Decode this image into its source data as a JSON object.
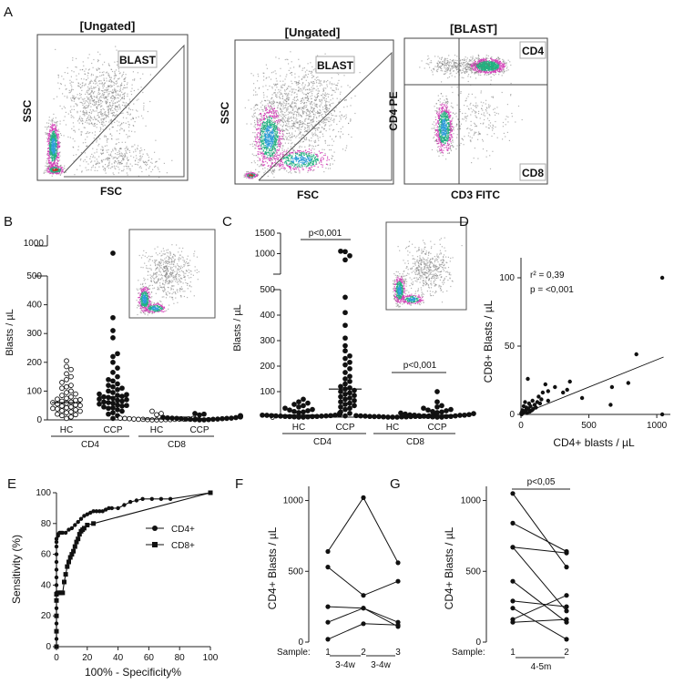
{
  "panel_labels": {
    "A": "A",
    "B": "B",
    "C": "C",
    "D": "D",
    "E": "E",
    "F": "F",
    "G": "G"
  },
  "panel_a": {
    "plots": [
      {
        "title": "[Ungated]",
        "gate_label": "BLAST",
        "x_label": "FSC",
        "y_label": "SSC"
      },
      {
        "title": "[Ungated]",
        "gate_label": "BLAST",
        "x_label": "FSC",
        "y_label": "SSC"
      },
      {
        "title": "[BLAST]",
        "x_label": "CD3 FITC",
        "y_label": "CD4 PE",
        "quadrant_top": "CD4",
        "quadrant_bottom": "CD8"
      }
    ],
    "density_colors": [
      "#2e9cd8",
      "#22b07f",
      "#d23fb6",
      "#c0302a",
      "#777777"
    ]
  },
  "chart_data": [
    {
      "panel": "B",
      "type": "scatter",
      "ylabel": "Blasts / µL",
      "y_ticks_lower": [
        "0",
        "100",
        "200",
        "300",
        "400",
        "500"
      ],
      "y_tick_upper": "1000",
      "ylim_lower": [
        0,
        500
      ],
      "categories": [
        "HC",
        "CCP",
        "HC",
        "CCP"
      ],
      "groups": [
        "CD4",
        "CD8"
      ],
      "series": [
        {
          "category": "HC",
          "group": "CD4",
          "marker": "open-circle",
          "median": 60,
          "values": [
            5,
            10,
            15,
            18,
            20,
            25,
            28,
            30,
            32,
            35,
            38,
            40,
            42,
            45,
            48,
            50,
            52,
            55,
            58,
            60,
            62,
            65,
            68,
            70,
            72,
            75,
            80,
            85,
            90,
            95,
            100,
            110,
            115,
            120,
            130,
            140,
            150,
            160,
            175,
            185,
            205
          ]
        },
        {
          "category": "CCP",
          "group": "CD4",
          "marker": "filled-circle",
          "median": 80,
          "values": [
            5,
            15,
            20,
            25,
            30,
            35,
            40,
            42,
            45,
            48,
            50,
            52,
            55,
            58,
            60,
            62,
            65,
            68,
            70,
            72,
            75,
            78,
            80,
            82,
            85,
            88,
            90,
            95,
            100,
            105,
            110,
            115,
            120,
            125,
            135,
            140,
            150,
            165,
            180,
            200,
            220,
            230,
            285,
            310,
            355,
            940
          ]
        },
        {
          "category": "HC",
          "group": "CD8",
          "marker": "open-circle",
          "median": 3,
          "values": [
            0,
            0,
            0,
            1,
            1,
            1,
            2,
            2,
            2,
            3,
            3,
            3,
            4,
            4,
            5,
            5,
            6,
            7,
            8,
            9,
            10,
            12,
            15,
            18,
            22,
            30
          ]
        },
        {
          "category": "CCP",
          "group": "CD8",
          "marker": "filled-circle",
          "median": 5,
          "values": [
            0,
            0,
            1,
            1,
            2,
            2,
            3,
            3,
            4,
            4,
            5,
            5,
            6,
            6,
            7,
            8,
            9,
            10,
            11,
            12,
            13,
            14,
            15,
            17,
            20,
            22
          ]
        }
      ]
    },
    {
      "panel": "C",
      "type": "scatter",
      "ylabel": "Blasts / µL",
      "y_ticks_lower": [
        "0",
        "100",
        "200",
        "300",
        "400",
        "500"
      ],
      "y_ticks_upper": [
        "1000",
        "1500"
      ],
      "ylim_lower": [
        0,
        500
      ],
      "categories": [
        "HC",
        "CCP",
        "HC",
        "CCP"
      ],
      "groups": [
        "CD4",
        "CD8"
      ],
      "annotations": [
        {
          "text": "p<0,001",
          "between": [
            0,
            1
          ]
        },
        {
          "text": "p<0,001",
          "between": [
            2,
            3
          ]
        }
      ],
      "series": [
        {
          "category": "HC",
          "group": "CD4",
          "marker": "filled-circle",
          "median": 8,
          "values": [
            0,
            0,
            1,
            1,
            2,
            2,
            3,
            3,
            4,
            4,
            5,
            5,
            6,
            6,
            7,
            8,
            8,
            9,
            10,
            12,
            14,
            16,
            18,
            20,
            22,
            25,
            28,
            30,
            35,
            40,
            45,
            50,
            55,
            60,
            70
          ]
        },
        {
          "category": "CCP",
          "group": "CD4",
          "marker": "filled-circle",
          "median": 110,
          "values": [
            5,
            15,
            20,
            30,
            35,
            40,
            45,
            50,
            55,
            60,
            65,
            70,
            75,
            80,
            85,
            90,
            95,
            100,
            105,
            110,
            115,
            120,
            130,
            140,
            150,
            160,
            175,
            190,
            205,
            215,
            230,
            240,
            260,
            280,
            310,
            360,
            410,
            470,
            850,
            950,
            1050,
            1060
          ]
        },
        {
          "category": "HC",
          "group": "CD8",
          "marker": "filled-circle",
          "median": 3,
          "values": [
            0,
            0,
            0,
            1,
            1,
            1,
            2,
            2,
            2,
            3,
            3,
            3,
            4,
            4,
            5,
            5,
            6,
            7,
            8,
            9,
            10
          ]
        },
        {
          "category": "CCP",
          "group": "CD8",
          "marker": "filled-circle",
          "median": 8,
          "values": [
            0,
            0,
            1,
            2,
            3,
            3,
            4,
            5,
            6,
            7,
            8,
            8,
            9,
            10,
            12,
            14,
            16,
            18,
            20,
            22,
            25,
            28,
            30,
            35,
            40,
            45,
            60,
            100
          ]
        }
      ]
    },
    {
      "panel": "D",
      "type": "scatter",
      "xlabel": "CD4+ blasts / µL",
      "ylabel": "CD8+ Blasts / µL",
      "xlim": [
        0,
        1100
      ],
      "ylim": [
        0,
        110
      ],
      "x_ticks": [
        "0",
        "500",
        "1000"
      ],
      "y_ticks": [
        "0",
        "50",
        "100"
      ],
      "stats": [
        "r² = 0,39",
        "p = <0,001"
      ],
      "regression": {
        "x": [
          0,
          1050
        ],
        "y": [
          0,
          42
        ]
      },
      "points": [
        [
          1040,
          100
        ],
        [
          850,
          44
        ],
        [
          790,
          23
        ],
        [
          670,
          20
        ],
        [
          660,
          7
        ],
        [
          450,
          12
        ],
        [
          360,
          24
        ],
        [
          340,
          18
        ],
        [
          310,
          16
        ],
        [
          250,
          20
        ],
        [
          200,
          17
        ],
        [
          200,
          10
        ],
        [
          180,
          22
        ],
        [
          160,
          16
        ],
        [
          150,
          11
        ],
        [
          140,
          8
        ],
        [
          130,
          13
        ],
        [
          120,
          9
        ],
        [
          110,
          5
        ],
        [
          100,
          7
        ],
        [
          90,
          4
        ],
        [
          85,
          10
        ],
        [
          80,
          3
        ],
        [
          70,
          6
        ],
        [
          65,
          2
        ],
        [
          60,
          8
        ],
        [
          55,
          4
        ],
        [
          50,
          26
        ],
        [
          45,
          1
        ],
        [
          40,
          5
        ],
        [
          35,
          3
        ],
        [
          30,
          9
        ],
        [
          25,
          2
        ],
        [
          20,
          6
        ],
        [
          15,
          1
        ],
        [
          10,
          3
        ],
        [
          8,
          2
        ],
        [
          5,
          0
        ],
        [
          3,
          1
        ],
        [
          1040,
          0
        ]
      ]
    },
    {
      "panel": "E",
      "type": "line",
      "xlabel": "100% - Specificity%",
      "ylabel": "Sensitivity (%)",
      "xlim": [
        0,
        100
      ],
      "ylim": [
        0,
        100
      ],
      "x_ticks": [
        "0",
        "20",
        "40",
        "60",
        "80",
        "100"
      ],
      "y_ticks": [
        "0",
        "20",
        "40",
        "60",
        "80",
        "100"
      ],
      "legend_position": "right",
      "series": [
        {
          "name": "CD4+",
          "marker": "circle",
          "x": [
            0,
            0,
            0,
            0,
            0,
            0,
            0,
            0,
            0,
            0,
            0,
            0,
            0,
            0,
            0,
            0,
            1,
            1,
            2,
            3,
            4,
            6,
            8,
            10,
            12,
            14,
            16,
            18,
            20,
            22,
            24,
            26,
            28,
            30,
            32,
            34,
            36,
            40,
            44,
            48,
            52,
            56,
            62,
            68,
            74,
            100
          ],
          "y": [
            0,
            5,
            10,
            15,
            20,
            25,
            30,
            35,
            40,
            45,
            50,
            55,
            60,
            65,
            68,
            70,
            72,
            73,
            74,
            74,
            74,
            74,
            76,
            77,
            79,
            81,
            83,
            85,
            86,
            87,
            88,
            88,
            88,
            88,
            89,
            90,
            90,
            90,
            92,
            94,
            95,
            96,
            96,
            96,
            96,
            100
          ]
        },
        {
          "name": "CD8+",
          "marker": "square",
          "x": [
            0,
            0,
            0,
            0,
            0,
            1,
            2,
            3,
            4,
            5,
            6,
            7,
            8,
            9,
            10,
            11,
            12,
            13,
            14,
            15,
            16,
            17,
            18,
            20,
            24,
            100
          ],
          "y": [
            0,
            10,
            20,
            30,
            34,
            35,
            35,
            35,
            35,
            42,
            47,
            52,
            55,
            58,
            60,
            62,
            65,
            68,
            70,
            73,
            75,
            76,
            77,
            79,
            80,
            100
          ]
        }
      ]
    },
    {
      "panel": "F",
      "type": "line",
      "ylabel": "CD4+ Blasts / µL",
      "xlim": [
        1,
        3
      ],
      "ylim": [
        0,
        1100
      ],
      "y_ticks": [
        "0",
        "500",
        "1000"
      ],
      "x_axis_prefix": "Sample:",
      "x_ticks": [
        "1",
        "2",
        "3"
      ],
      "intervals": [
        "3-4w",
        "3-4w"
      ],
      "series": [
        {
          "x": [
            1,
            2,
            3
          ],
          "y": [
            640,
            1020,
            560
          ]
        },
        {
          "x": [
            1,
            2,
            3
          ],
          "y": [
            530,
            330,
            430
          ]
        },
        {
          "x": [
            1,
            2,
            3
          ],
          "y": [
            250,
            240,
            140
          ]
        },
        {
          "x": [
            1,
            2,
            3
          ],
          "y": [
            140,
            240,
            110
          ]
        },
        {
          "x": [
            1,
            2,
            3
          ],
          "y": [
            20,
            130,
            120
          ]
        }
      ]
    },
    {
      "panel": "G",
      "type": "line",
      "ylabel": "CD4+ Blasts / µL",
      "xlim": [
        1,
        2
      ],
      "ylim": [
        0,
        1100
      ],
      "y_ticks": [
        "0",
        "500",
        "1000"
      ],
      "x_axis_prefix": "Sample:",
      "x_ticks": [
        "1",
        "2"
      ],
      "intervals": [
        "4-5m"
      ],
      "annotation": "p<0,05",
      "series": [
        {
          "x": [
            1,
            2
          ],
          "y": [
            1050,
            530
          ]
        },
        {
          "x": [
            1,
            2
          ],
          "y": [
            840,
            640
          ]
        },
        {
          "x": [
            1,
            2
          ],
          "y": [
            670,
            630
          ]
        },
        {
          "x": [
            1,
            2
          ],
          "y": [
            670,
            220
          ]
        },
        {
          "x": [
            1,
            2
          ],
          "y": [
            430,
            140
          ]
        },
        {
          "x": [
            1,
            2
          ],
          "y": [
            290,
            250
          ]
        },
        {
          "x": [
            1,
            2
          ],
          "y": [
            240,
            20
          ]
        },
        {
          "x": [
            1,
            2
          ],
          "y": [
            160,
            330
          ]
        },
        {
          "x": [
            1,
            2
          ],
          "y": [
            140,
            160
          ]
        }
      ]
    }
  ]
}
